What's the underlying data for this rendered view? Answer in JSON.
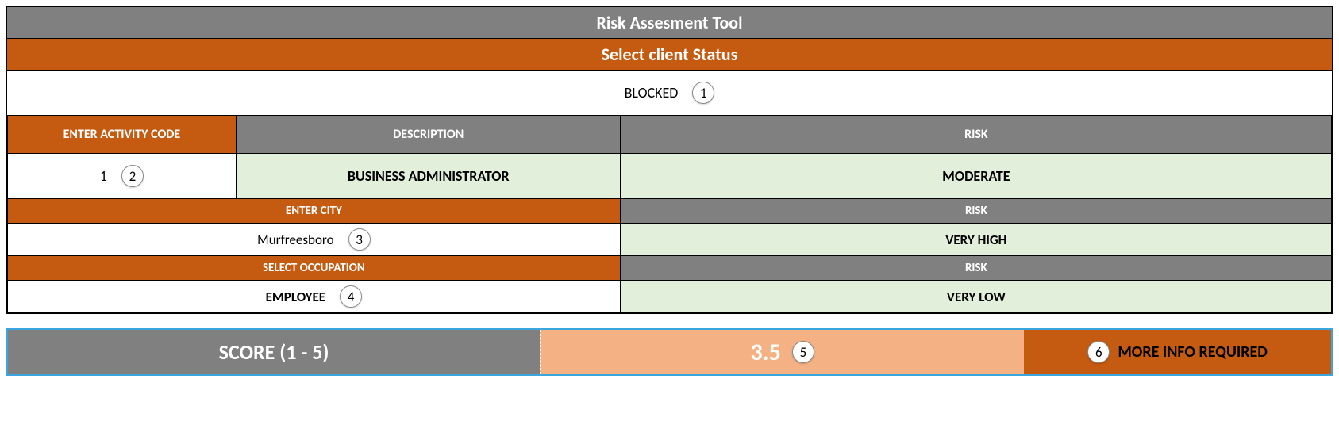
{
  "header": {
    "title": "Risk Assesment Tool",
    "subtitle": "Select client Status"
  },
  "status": {
    "value": "BLOCKED",
    "badge": "1"
  },
  "activity": {
    "code_header": "ENTER ACTIVITY CODE",
    "desc_header": "DESCRIPTION",
    "risk_header": "RISK",
    "code_value": "1",
    "code_badge": "2",
    "description": "BUSINESS ADMINISTRATOR",
    "risk": "MODERATE"
  },
  "city": {
    "header": "ENTER CITY",
    "risk_header": "RISK",
    "value": "Murfreesboro",
    "badge": "3",
    "risk": "VERY HIGH"
  },
  "occupation": {
    "header": "SELECT OCCUPATION",
    "risk_header": "RISK",
    "value": "EMPLOYEE",
    "badge": "4",
    "risk": "VERY LOW"
  },
  "score": {
    "label": "SCORE (1 - 5)",
    "value": "3.5",
    "value_badge": "5",
    "msg_badge": "6",
    "message": "MORE INFO REQUIRED"
  },
  "colors": {
    "gray": "#808080",
    "orange": "#c55a11",
    "light_orange": "#f4b183",
    "light_green": "#e2efda",
    "blue_border": "#3aa6dd"
  }
}
